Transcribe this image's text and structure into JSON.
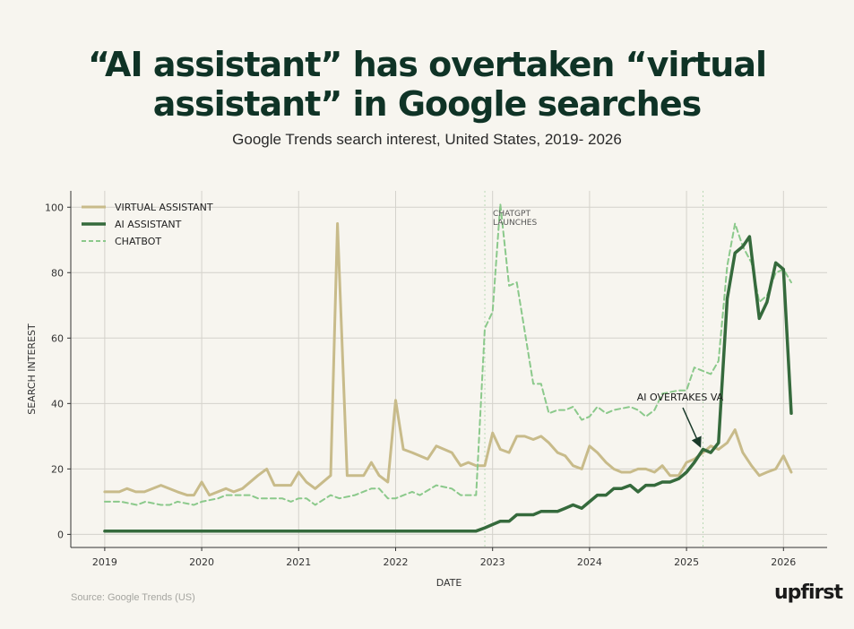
{
  "header": {
    "title_line1": "“AI assistant” has overtaken “virtual",
    "title_line2": "assistant” in Google searches",
    "subtitle": "Google Trends search interest, United States, 2019- 2026"
  },
  "footer": {
    "source": "Source: Google Trends (US)",
    "logo": "upfirst"
  },
  "chart_data": {
    "type": "line",
    "xlabel": "DATE",
    "ylabel": "SEARCH INTEREST",
    "xlim": [
      2018.65,
      2026.45
    ],
    "ylim": [
      -4,
      105
    ],
    "x_ticks": [
      2019,
      2020,
      2021,
      2022,
      2023,
      2024,
      2025,
      2026
    ],
    "y_ticks": [
      0,
      20,
      40,
      60,
      80,
      100
    ],
    "grid": true,
    "legend_position": "top-left",
    "colors": {
      "va": "#c8bb8a",
      "ai": "#356a3c",
      "chatbot": "#8bc98b",
      "grid": "#d4d2cb",
      "axis": "#333333"
    },
    "series": [
      {
        "name": "VIRTUAL ASSISTANT",
        "style": "solid-thick",
        "points": [
          [
            2019.0,
            13
          ],
          [
            2019.15,
            13
          ],
          [
            2019.23,
            14
          ],
          [
            2019.32,
            13
          ],
          [
            2019.41,
            13
          ],
          [
            2019.58,
            15
          ],
          [
            2019.75,
            13
          ],
          [
            2019.85,
            12
          ],
          [
            2019.92,
            12
          ],
          [
            2020.0,
            16
          ],
          [
            2020.08,
            12
          ],
          [
            2020.25,
            14
          ],
          [
            2020.33,
            13
          ],
          [
            2020.42,
            14
          ],
          [
            2020.58,
            18
          ],
          [
            2020.67,
            20
          ],
          [
            2020.75,
            15
          ],
          [
            2020.92,
            15
          ],
          [
            2021.0,
            19
          ],
          [
            2021.08,
            16
          ],
          [
            2021.17,
            14
          ],
          [
            2021.33,
            18
          ],
          [
            2021.4,
            95
          ],
          [
            2021.5,
            18
          ],
          [
            2021.67,
            18
          ],
          [
            2021.75,
            22
          ],
          [
            2021.83,
            18
          ],
          [
            2021.92,
            16
          ],
          [
            2022.0,
            41
          ],
          [
            2022.08,
            26
          ],
          [
            2022.17,
            25
          ],
          [
            2022.33,
            23
          ],
          [
            2022.42,
            27
          ],
          [
            2022.58,
            25
          ],
          [
            2022.67,
            21
          ],
          [
            2022.75,
            22
          ],
          [
            2022.83,
            21
          ],
          [
            2022.92,
            21
          ],
          [
            2023.0,
            31
          ],
          [
            2023.08,
            26
          ],
          [
            2023.17,
            25
          ],
          [
            2023.25,
            30
          ],
          [
            2023.33,
            30
          ],
          [
            2023.42,
            29
          ],
          [
            2023.5,
            30
          ],
          [
            2023.58,
            28
          ],
          [
            2023.67,
            25
          ],
          [
            2023.75,
            24
          ],
          [
            2023.83,
            21
          ],
          [
            2023.92,
            20
          ],
          [
            2024.0,
            27
          ],
          [
            2024.08,
            25
          ],
          [
            2024.17,
            22
          ],
          [
            2024.25,
            20
          ],
          [
            2024.33,
            19
          ],
          [
            2024.42,
            19
          ],
          [
            2024.5,
            20
          ],
          [
            2024.58,
            20
          ],
          [
            2024.67,
            19
          ],
          [
            2024.75,
            21
          ],
          [
            2024.83,
            18
          ],
          [
            2024.92,
            18
          ],
          [
            2025.0,
            22
          ],
          [
            2025.08,
            23
          ],
          [
            2025.17,
            25
          ],
          [
            2025.25,
            27
          ],
          [
            2025.33,
            26
          ],
          [
            2025.42,
            28
          ],
          [
            2025.5,
            32
          ],
          [
            2025.58,
            25
          ],
          [
            2025.67,
            21
          ],
          [
            2025.75,
            18
          ],
          [
            2025.83,
            19
          ],
          [
            2025.92,
            20
          ],
          [
            2026.0,
            24
          ],
          [
            2026.08,
            19
          ]
        ]
      },
      {
        "name": "AI ASSISTANT",
        "style": "solid-thick",
        "points": [
          [
            2019.0,
            1
          ],
          [
            2022.83,
            1
          ],
          [
            2022.92,
            2
          ],
          [
            2023.0,
            3
          ],
          [
            2023.08,
            4
          ],
          [
            2023.17,
            4
          ],
          [
            2023.25,
            6
          ],
          [
            2023.33,
            6
          ],
          [
            2023.42,
            6
          ],
          [
            2023.5,
            7
          ],
          [
            2023.58,
            7
          ],
          [
            2023.67,
            7
          ],
          [
            2023.75,
            8
          ],
          [
            2023.83,
            9
          ],
          [
            2023.92,
            8
          ],
          [
            2024.0,
            10
          ],
          [
            2024.08,
            12
          ],
          [
            2024.17,
            12
          ],
          [
            2024.25,
            14
          ],
          [
            2024.33,
            14
          ],
          [
            2024.42,
            15
          ],
          [
            2024.5,
            13
          ],
          [
            2024.58,
            15
          ],
          [
            2024.67,
            15
          ],
          [
            2024.75,
            16
          ],
          [
            2024.83,
            16
          ],
          [
            2024.92,
            17
          ],
          [
            2025.0,
            19
          ],
          [
            2025.08,
            22
          ],
          [
            2025.17,
            26
          ],
          [
            2025.25,
            25
          ],
          [
            2025.33,
            28
          ],
          [
            2025.42,
            72
          ],
          [
            2025.5,
            86
          ],
          [
            2025.58,
            88
          ],
          [
            2025.65,
            91
          ],
          [
            2025.75,
            66
          ],
          [
            2025.83,
            71
          ],
          [
            2025.92,
            83
          ],
          [
            2026.0,
            81
          ],
          [
            2026.08,
            37
          ]
        ]
      },
      {
        "name": "CHATBOT",
        "style": "dashed",
        "points": [
          [
            2019.0,
            10
          ],
          [
            2019.17,
            10
          ],
          [
            2019.33,
            9
          ],
          [
            2019.42,
            10
          ],
          [
            2019.58,
            9
          ],
          [
            2019.67,
            9
          ],
          [
            2019.75,
            10
          ],
          [
            2019.92,
            9
          ],
          [
            2020.0,
            10
          ],
          [
            2020.17,
            11
          ],
          [
            2020.25,
            12
          ],
          [
            2020.5,
            12
          ],
          [
            2020.58,
            11
          ],
          [
            2020.83,
            11
          ],
          [
            2020.92,
            10
          ],
          [
            2021.0,
            11
          ],
          [
            2021.08,
            11
          ],
          [
            2021.17,
            9
          ],
          [
            2021.33,
            12
          ],
          [
            2021.42,
            11
          ],
          [
            2021.58,
            12
          ],
          [
            2021.75,
            14
          ],
          [
            2021.83,
            14
          ],
          [
            2021.92,
            11
          ],
          [
            2022.0,
            11
          ],
          [
            2022.17,
            13
          ],
          [
            2022.25,
            12
          ],
          [
            2022.42,
            15
          ],
          [
            2022.58,
            14
          ],
          [
            2022.67,
            12
          ],
          [
            2022.83,
            12
          ],
          [
            2022.92,
            63
          ],
          [
            2023.0,
            68
          ],
          [
            2023.08,
            101
          ],
          [
            2023.17,
            76
          ],
          [
            2023.25,
            77
          ],
          [
            2023.42,
            46
          ],
          [
            2023.5,
            46
          ],
          [
            2023.58,
            37
          ],
          [
            2023.67,
            38
          ],
          [
            2023.75,
            38
          ],
          [
            2023.83,
            39
          ],
          [
            2023.92,
            35
          ],
          [
            2024.0,
            36
          ],
          [
            2024.08,
            39
          ],
          [
            2024.17,
            37
          ],
          [
            2024.25,
            38
          ],
          [
            2024.42,
            39
          ],
          [
            2024.5,
            38
          ],
          [
            2024.58,
            36
          ],
          [
            2024.67,
            38
          ],
          [
            2024.75,
            43
          ],
          [
            2024.92,
            44
          ],
          [
            2025.0,
            44
          ],
          [
            2025.08,
            51
          ],
          [
            2025.25,
            49
          ],
          [
            2025.33,
            53
          ],
          [
            2025.42,
            82
          ],
          [
            2025.5,
            95
          ],
          [
            2025.58,
            88
          ],
          [
            2025.67,
            83
          ],
          [
            2025.75,
            71
          ],
          [
            2025.83,
            73
          ],
          [
            2025.92,
            80
          ],
          [
            2026.0,
            81
          ],
          [
            2026.08,
            77
          ]
        ]
      }
    ],
    "annotations": [
      {
        "id": "chatgpt",
        "text_lines": [
          "CHATGPT",
          "LAUNCHES"
        ],
        "x": 2022.92,
        "y": 101
      },
      {
        "id": "overtake",
        "text": "AI OVERTAKES VA",
        "x": 2025.17,
        "y": 42,
        "arrow_to": [
          2025.17,
          26
        ]
      }
    ]
  }
}
